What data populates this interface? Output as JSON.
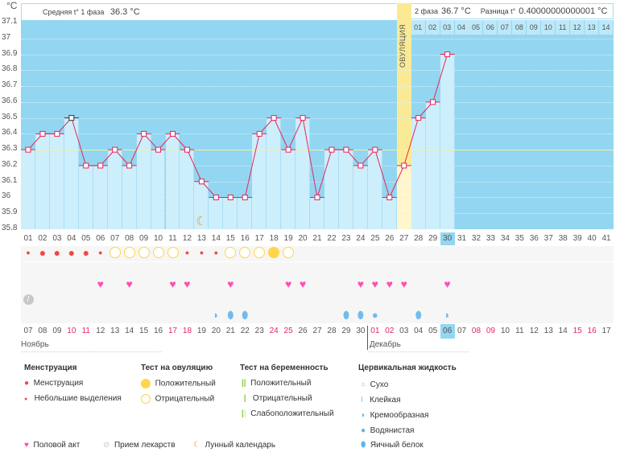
{
  "unit": "°C",
  "header": {
    "phase1_label": "Средняя t° 1 фаза",
    "phase1_value": "36.3 °C",
    "phase2_label": "2 фаза",
    "phase2_value": "36.7 °C",
    "diff_label": "Разница t°",
    "diff_value": "0.40000000000001 °C"
  },
  "ovulation_label": "ОВУЛЯЦИЯ",
  "colors": {
    "plot_bg": "#93d6f1",
    "bar": "#cdeefb",
    "line": "#e8245a",
    "ovulation": "#fbea95",
    "weekend": "#e8245a"
  },
  "y_ticks": [
    "37.1",
    "37",
    "36.9",
    "36.8",
    "36.7",
    "36.6",
    "36.5",
    "36.4",
    "36.3",
    "36.2",
    "36.1",
    "36",
    "35.9",
    "35.8"
  ],
  "chart_data": {
    "type": "line",
    "ylim": [
      35.8,
      37.1
    ],
    "ovulation_day": 27,
    "phase1_average": 36.3,
    "moon_day": 13,
    "cycle_days": [
      "01",
      "02",
      "03",
      "04",
      "05",
      "06",
      "07",
      "08",
      "09",
      "10",
      "11",
      "12",
      "13",
      "14",
      "15",
      "16",
      "17",
      "18",
      "19",
      "20",
      "21",
      "22",
      "23",
      "24",
      "25",
      "26",
      "27",
      "28",
      "29",
      "30",
      "31",
      "32",
      "33",
      "34",
      "35",
      "36",
      "37",
      "38",
      "39",
      "40",
      "41"
    ],
    "temperatures": [
      36.3,
      36.4,
      36.4,
      36.5,
      36.2,
      36.2,
      36.3,
      36.2,
      36.4,
      36.3,
      36.4,
      36.3,
      36.1,
      36.0,
      36.0,
      36.0,
      36.4,
      36.5,
      36.3,
      36.5,
      36.0,
      36.3,
      36.3,
      36.2,
      36.3,
      36.0,
      36.2,
      36.5,
      36.6,
      36.9
    ],
    "current_day": "30"
  },
  "phase2_days": [
    "01",
    "02",
    "03",
    "04",
    "05",
    "06",
    "07",
    "08",
    "09",
    "10",
    "11",
    "12",
    "13",
    "14"
  ],
  "dates": [
    "07",
    "08",
    "09",
    "10",
    "11",
    "12",
    "13",
    "14",
    "15",
    "16",
    "17",
    "18",
    "19",
    "20",
    "21",
    "22",
    "23",
    "24",
    "25",
    "26",
    "27",
    "28",
    "29",
    "30",
    "01",
    "02",
    "03",
    "04",
    "05",
    "06",
    "07",
    "08",
    "09",
    "10",
    "11",
    "12",
    "13",
    "14",
    "15",
    "16",
    "17"
  ],
  "weekend_dates_idx": [
    3,
    4,
    10,
    11,
    17,
    18,
    24,
    25,
    31,
    32,
    38,
    39
  ],
  "current_date": "06",
  "months": {
    "nov": "Ноябрь",
    "dec": "Декабрь"
  },
  "marks": {
    "menstruation": {
      "1": "small",
      "2": "big",
      "3": "big",
      "4": "big",
      "5": "big",
      "6": "small",
      "12": "small",
      "13": "small",
      "14": "small"
    },
    "ovulation_test": {
      "7": "neg",
      "8": "neg",
      "9": "neg",
      "10": "neg",
      "11": "neg",
      "15": "neg",
      "16": "neg",
      "17": "neg",
      "18": "pos",
      "19": "neg"
    },
    "intercourse": [
      6,
      8,
      11,
      12,
      15,
      19,
      20,
      24,
      25,
      26,
      27,
      30
    ],
    "medication": [
      1
    ],
    "fluid": {
      "14": "creamy",
      "15": "egg",
      "16": "egg",
      "23": "egg",
      "24": "egg",
      "25": "watery",
      "28": "egg",
      "30": "creamy"
    }
  },
  "legend": {
    "menstruation": {
      "title": "Менструация",
      "items": [
        "Менструация",
        "Небольшие выделения"
      ]
    },
    "ovulation_test": {
      "title": "Тест на овуляцию",
      "items": [
        "Положительный",
        "Отрицательный"
      ]
    },
    "pregnancy_test": {
      "title": "Тест на беременность",
      "items": [
        "Положительный",
        "Отрицательный",
        "Слабоположительный"
      ]
    },
    "fluid": {
      "title": "Цервикальная жидкость",
      "items": [
        "Сухо",
        "Клейкая",
        "Кремообразная",
        "Водянистая",
        "Яичный белок"
      ]
    },
    "other": [
      "Половой акт",
      "Прием лекарств",
      "Лунный календарь"
    ]
  }
}
